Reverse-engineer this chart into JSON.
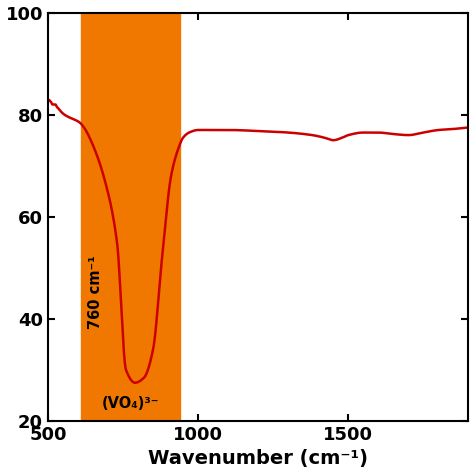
{
  "xlim": [
    500,
    1900
  ],
  "ylim": [
    20,
    100
  ],
  "xticks": [
    500,
    1000,
    1500
  ],
  "yticks": [
    20,
    40,
    60,
    80,
    100
  ],
  "xlabel": "Wavenumber (cm⁻¹)",
  "xlabel_fontsize": 14,
  "tick_fontsize": 13,
  "line_color": "#cc0000",
  "line_width": 1.8,
  "orange_region": [
    610,
    940
  ],
  "orange_color": "#f07800",
  "ann1_text": "760 cm⁻¹",
  "ann2_text": "(VO₄)³⁻",
  "ann1_x": 660,
  "ann1_y": 38,
  "ann2_x": 680,
  "ann2_y": 22,
  "ann_fontsize": 10.5
}
